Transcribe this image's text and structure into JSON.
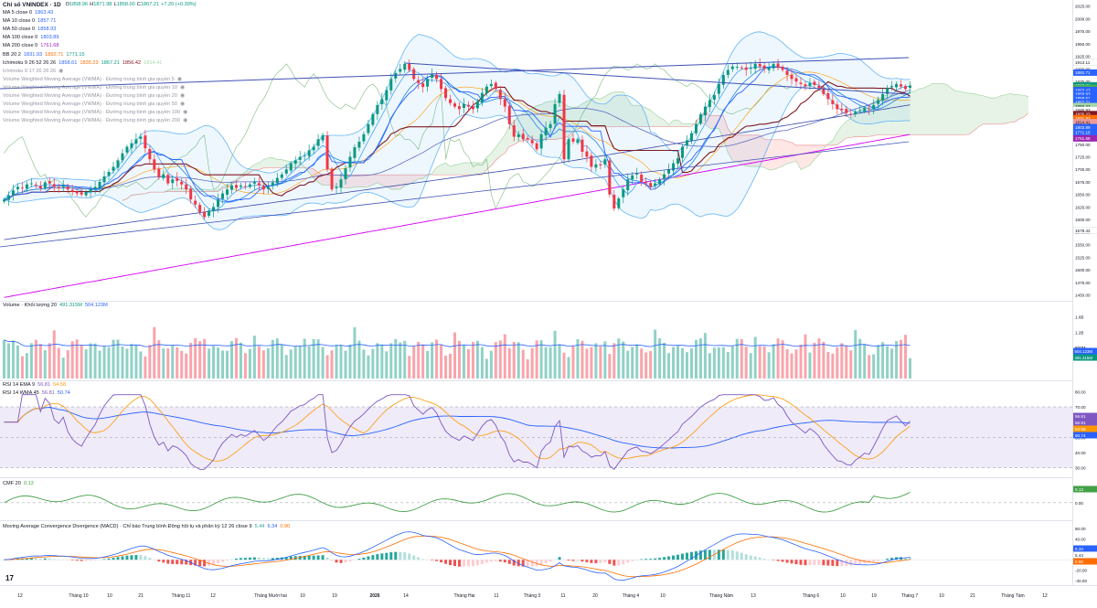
{
  "header": {
    "symbol": "Chỉ số VNINDEX · 1D",
    "ohlc": [
      {
        "k": "O",
        "v": "1858.96"
      },
      {
        "k": "H",
        "v": "1871.98"
      },
      {
        "k": "L",
        "v": "1858.00"
      },
      {
        "k": "C",
        "v": "1867.21"
      },
      {
        "k": "",
        "v": "+7.20 (+0.39%)"
      }
    ]
  },
  "indicators": [
    {
      "label": "MA 5 close 0",
      "vals": [
        "1863.43"
      ],
      "color": "#2962ff"
    },
    {
      "label": "MA 10 close 0",
      "vals": [
        "1857.71"
      ],
      "color": "#2962ff"
    },
    {
      "label": "MA 50 close 0",
      "vals": [
        "1858.93"
      ],
      "color": "#2962ff"
    },
    {
      "label": "MA 100 close 0",
      "vals": [
        "1803.89"
      ],
      "color": "#2962ff"
    },
    {
      "label": "MA 200 close 0",
      "vals": [
        "1761.68"
      ],
      "color": "#9c27b0"
    },
    {
      "label": "BB 20 2",
      "vals": [
        "1831.93",
        "1892.71",
        "1771.15"
      ],
      "color": "#2962ff"
    },
    {
      "label": "Ichimoku 9 26 52 26 26",
      "vals": [
        "1858.61",
        "1835.23",
        "1867.21",
        "1856.42",
        "1814.41"
      ],
      "color": "#2962ff"
    },
    {
      "label": "Ichimoku 9 17 26 26 26",
      "vals": [],
      "color": "#9598a1",
      "muted": true
    },
    {
      "label": "Volume Weighted Moving Average (VWMA) · Đường trung bình gia quyền 5",
      "vals": [],
      "muted": true
    },
    {
      "label": "Volume Weighted Moving Average (VWMA) · Đường trung bình gia quyền 10",
      "vals": [],
      "muted": true
    },
    {
      "label": "Volume Weighted Moving Average (VWMA) · Đường trung bình gia quyền 20",
      "vals": [],
      "muted": true
    },
    {
      "label": "Volume Weighted Moving Average (VWMA) · Đường trung bình gia quyền 50",
      "vals": [],
      "muted": true
    },
    {
      "label": "Volume Weighted Moving Average (VWMA) · Đường trung bình gia quyền 100",
      "vals": [],
      "muted": true
    },
    {
      "label": "Volume Weighted Moving Average (VWMA) · Đường trung bình gia quyền 200",
      "vals": [],
      "muted": true
    }
  ],
  "price_axis": {
    "ticks": [
      "2025.00",
      "2000.00",
      "1975.00",
      "1950.00",
      "1925.00",
      "1900.00",
      "1875.00",
      "1850.00",
      "1825.00",
      "1800.00",
      "1775.00",
      "1750.00",
      "1725.00",
      "1700.00",
      "1675.00",
      "1650.00",
      "1625.00",
      "1600.00",
      "1575.00",
      "1550.00",
      "1525.00",
      "1500.00",
      "1475.00",
      "1450.00"
    ],
    "labels": [
      {
        "text": "1913.11",
        "tag": "Đỉnh",
        "value": 1913.11,
        "bg": "#ffffff",
        "fg": "#131722"
      },
      {
        "text": "1892.71",
        "value": 1892.71,
        "bg": "#2962ff",
        "fg": "#ffffff"
      },
      {
        "text": "1867.21",
        "value": 1867.21,
        "bg": "#089981",
        "fg": "#ffffff"
      },
      {
        "text": "1867.21",
        "value": 1862.0,
        "bg": "#4caf50",
        "fg": "#ffffff"
      },
      {
        "text": "1863.43",
        "value": 1858.0,
        "bg": "#2962ff",
        "fg": "#ffffff"
      },
      {
        "text": "1858.93",
        "value": 1850.0,
        "bg": "#2962ff",
        "fg": "#ffffff"
      },
      {
        "text": "1858.61",
        "value": 1842.0,
        "bg": "#2962ff",
        "fg": "#ffffff"
      },
      {
        "text": "1857.71",
        "value": 1834.0,
        "bg": "#2962ff",
        "fg": "#ffffff"
      },
      {
        "text": "1856.42",
        "value": 1826.0,
        "bg": "#a5d6a7",
        "fg": "#131722"
      },
      {
        "text": "1846.93",
        "value": 1818.0,
        "bg": "#ffffff",
        "fg": "#131722"
      },
      {
        "text": "1835.23",
        "value": 1810.0,
        "bg": "#801922",
        "fg": "#ffffff"
      },
      {
        "text": "1831.93",
        "value": 1802.0,
        "bg": "#ff6d00",
        "fg": "#ffffff"
      },
      {
        "text": "1814.41",
        "value": 1794.0,
        "bg": "#ef9a9a",
        "fg": "#131722"
      },
      {
        "text": "1803.89",
        "value": 1784.0,
        "bg": "#2962ff",
        "fg": "#ffffff"
      },
      {
        "text": "1771.15",
        "value": 1774.0,
        "bg": "#2962ff",
        "fg": "#ffffff"
      },
      {
        "text": "1761.68",
        "value": 1761.68,
        "bg": "#9c27b0",
        "fg": "#ffffff"
      },
      {
        "text": "1578.42",
        "tag": "Đáy",
        "value": 1578.42,
        "bg": "#ffffff",
        "fg": "#131722"
      }
    ]
  },
  "volume_pane": {
    "label": "Volume · Khối lượng 20",
    "vals": [
      "491.315M",
      "504.123M"
    ],
    "ticks": [
      "1.6B",
      "1.2B",
      "800M"
    ],
    "labels": [
      "504.123M",
      "491.315M"
    ]
  },
  "rsi_pane": {
    "rows": [
      {
        "label": "RSI 14 EMA 9",
        "vals": [
          "56.81",
          "54.58"
        ]
      },
      {
        "label": "RSI 14 WMA 45",
        "vals": [
          "56.81",
          "50.74"
        ]
      }
    ],
    "ticks": [
      "80.00",
      "70.00",
      "60.00",
      "50.00",
      "40.00",
      "30.00"
    ],
    "labels": [
      {
        "text": "56.81",
        "bg": "#7e57c2"
      },
      {
        "text": "56.81",
        "bg": "#7e57c2"
      },
      {
        "text": "54.58",
        "bg": "#ff9800"
      },
      {
        "text": "50.74",
        "bg": "#2962ff"
      }
    ]
  },
  "cmf_pane": {
    "label": "CMF 20",
    "vals": [
      "0.13"
    ],
    "ticks": [
      "0.13",
      "0.00"
    ]
  },
  "macd_pane": {
    "label": "Moving Average Convergence Divergence (MACD) · Chỉ báo Trung bình Động hội tụ và phân kỳ 12 26 close 9",
    "vals": [
      "5.44",
      "6.34",
      "0.90"
    ],
    "ticks": [
      "60.00",
      "40.00",
      "20.00",
      "0.00",
      "-20.00",
      "-40.00"
    ],
    "labels": [
      {
        "text": "6.34",
        "bg": "#2962ff"
      },
      {
        "text": "5.44",
        "bg": "#ffffff"
      },
      {
        "text": "0.90",
        "bg": "#ff6d00"
      }
    ]
  },
  "time_axis": [
    {
      "t": "12",
      "x": 22
    },
    {
      "t": "Tháng 10",
      "x": 86
    },
    {
      "t": "10",
      "x": 120
    },
    {
      "t": "21",
      "x": 154
    },
    {
      "t": "Tháng 11",
      "x": 198
    },
    {
      "t": "12",
      "x": 233
    },
    {
      "t": "Tháng Mười hai",
      "x": 296
    },
    {
      "t": "10",
      "x": 331
    },
    {
      "t": "19",
      "x": 366
    },
    {
      "t": "2026",
      "x": 410,
      "bold": true
    },
    {
      "t": "14",
      "x": 444
    },
    {
      "t": "Tháng Hai",
      "x": 508
    },
    {
      "t": "11",
      "x": 543
    },
    {
      "t": "Tháng 3",
      "x": 582
    },
    {
      "t": "11",
      "x": 616
    },
    {
      "t": "20",
      "x": 651
    },
    {
      "t": "Tháng 4",
      "x": 690
    },
    {
      "t": "10",
      "x": 725
    },
    {
      "t": "Tháng Năm",
      "x": 789
    },
    {
      "t": "13",
      "x": 824
    },
    {
      "t": "Tháng 6",
      "x": 887
    },
    {
      "t": "10",
      "x": 922
    },
    {
      "t": "19",
      "x": 956
    },
    {
      "t": "Tháng 7",
      "x": 995
    },
    {
      "t": "10",
      "x": 1030
    },
    {
      "t": "21",
      "x": 1064
    },
    {
      "t": "Tháng Tám",
      "x": 1108
    },
    {
      "t": "12",
      "x": 1143
    }
  ],
  "logo": "17",
  "chart_data": {
    "type": "candlestick",
    "title": "Chỉ số VNINDEX",
    "interval": "1D",
    "ylim": [
      1440,
      2030
    ],
    "closes_approx": [
      1640,
      1648,
      1658,
      1665,
      1662,
      1670,
      1672,
      1668,
      1662,
      1674,
      1672,
      1665,
      1663,
      1668,
      1660,
      1655,
      1652,
      1650,
      1655,
      1660,
      1665,
      1675,
      1686,
      1695,
      1705,
      1718,
      1732,
      1745,
      1752,
      1760,
      1765,
      1742,
      1720,
      1700,
      1685,
      1690,
      1672,
      1680,
      1677,
      1670,
      1660,
      1640,
      1630,
      1615,
      1605,
      1618,
      1625,
      1640,
      1652,
      1660,
      1668,
      1663,
      1668,
      1665,
      1670,
      1675,
      1668,
      1660,
      1665,
      1674,
      1683,
      1690,
      1700,
      1712,
      1718,
      1725,
      1728,
      1738,
      1745,
      1760,
      1768,
      1700,
      1660,
      1665,
      1680,
      1702,
      1725,
      1744,
      1755,
      1770,
      1790,
      1810,
      1828,
      1840,
      1858,
      1880,
      1892,
      1900,
      1910,
      1898,
      1880,
      1872,
      1864,
      1880,
      1890,
      1880,
      1860,
      1842,
      1832,
      1825,
      1820,
      1830,
      1825,
      1820,
      1835,
      1852,
      1865,
      1870,
      1860,
      1840,
      1825,
      1790,
      1765,
      1770,
      1760,
      1760,
      1752,
      1740,
      1770,
      1783,
      1790,
      1830,
      1850,
      1720,
      1760,
      1755,
      1760,
      1735,
      1725,
      1705,
      1710,
      1708,
      1720,
      1650,
      1622,
      1642,
      1660,
      1680,
      1688,
      1692,
      1675,
      1672,
      1665,
      1672,
      1680,
      1690,
      1700,
      1712,
      1722,
      1745,
      1758,
      1772,
      1790,
      1810,
      1825,
      1838,
      1848,
      1870,
      1888,
      1898,
      1905,
      1904,
      1902,
      1898,
      1902,
      1910,
      1905,
      1900,
      1902,
      1910,
      1902,
      1898,
      1888,
      1880,
      1875,
      1870,
      1865,
      1872,
      1868,
      1862,
      1850,
      1840,
      1830,
      1820,
      1818,
      1812,
      1810,
      1815,
      1818,
      1822,
      1820,
      1828,
      1838,
      1850,
      1862,
      1866,
      1870,
      1865,
      1860,
      1867
    ]
  }
}
